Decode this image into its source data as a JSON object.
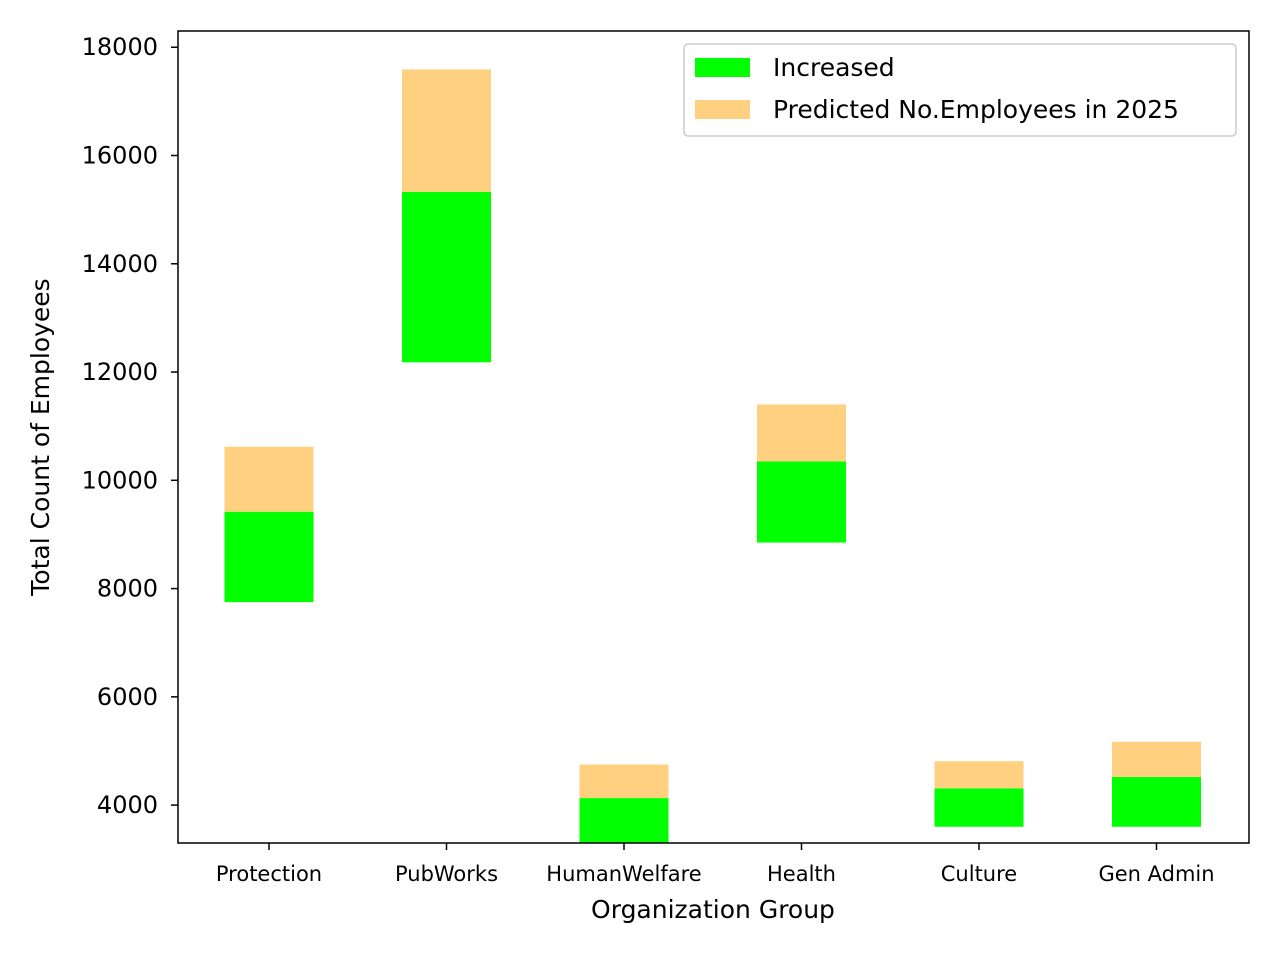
{
  "chart_data": {
    "type": "bar",
    "stacked": "floating",
    "categories": [
      "Protection",
      "PubWorks",
      "HumanWelfare",
      "Health",
      "Culture",
      "Gen Admin"
    ],
    "series": [
      {
        "name": "Increased",
        "color": "#00ff00",
        "ranges": [
          [
            7750,
            9420
          ],
          [
            12180,
            15330
          ],
          [
            3300,
            4130
          ],
          [
            8850,
            10350
          ],
          [
            3600,
            4310
          ],
          [
            3600,
            4520
          ]
        ]
      },
      {
        "name": "Predicted No.Employees in 2025",
        "color": "#ffd080",
        "ranges": [
          [
            9420,
            10620
          ],
          [
            15330,
            17590
          ],
          [
            4130,
            4750
          ],
          [
            10350,
            11400
          ],
          [
            4310,
            4810
          ],
          [
            4520,
            5170
          ]
        ]
      }
    ],
    "xlabel": "Organization Group",
    "ylabel": "Total Count of Employees",
    "ylim": [
      3300,
      18300
    ],
    "yticks": [
      4000,
      6000,
      8000,
      10000,
      12000,
      14000,
      16000,
      18000
    ],
    "grid": false,
    "legend_position": "top-right"
  }
}
